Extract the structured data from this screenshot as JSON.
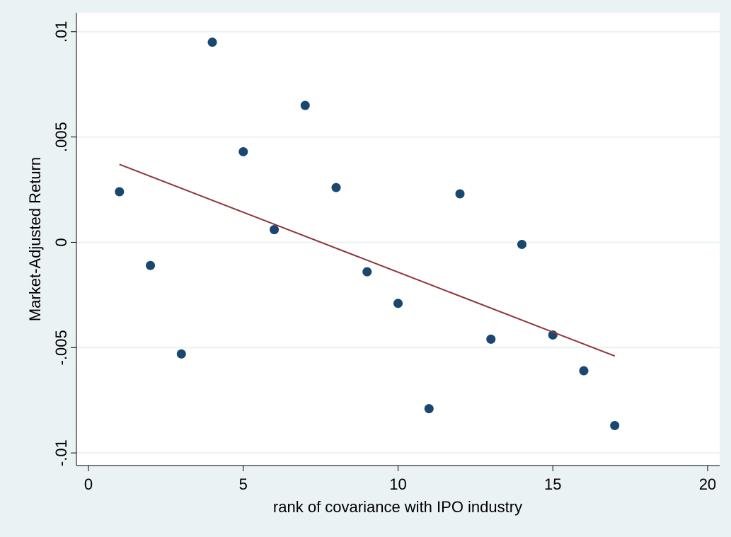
{
  "chart_data": {
    "type": "scatter",
    "x_label": "rank of covariance with IPO industry",
    "y_label": "Market-Adjusted Return",
    "series": [
      {
        "mode": "markers",
        "color": "#1a476f",
        "x": [
          1,
          2,
          3,
          4,
          5,
          6,
          7,
          8,
          9,
          10,
          11,
          12,
          13,
          14,
          15,
          16,
          17
        ],
        "values": [
          0.0024,
          -0.0011,
          -0.0053,
          0.0095,
          0.0043,
          0.0006,
          0.0065,
          0.0026,
          -0.0014,
          -0.0029,
          -0.0079,
          0.0023,
          -0.0046,
          -0.0001,
          -0.0044,
          -0.0061,
          -0.0087
        ]
      },
      {
        "mode": "line",
        "color": "#90353b",
        "x": [
          1,
          17
        ],
        "values": [
          0.0037,
          -0.0054
        ]
      }
    ],
    "xlim": [
      -0.39,
      20.39
    ],
    "ylim": [
      -0.0106,
      0.0109
    ],
    "xticks": [
      0,
      5,
      10,
      15,
      20
    ],
    "yticks": [
      {
        "value": -0.01,
        "label": "-.01"
      },
      {
        "value": -0.005,
        "label": "-.005"
      },
      {
        "value": 0,
        "label": "0"
      },
      {
        "value": 0.005,
        "label": ".005"
      },
      {
        "value": 0.01,
        "label": ".01"
      }
    ],
    "grid": true
  }
}
